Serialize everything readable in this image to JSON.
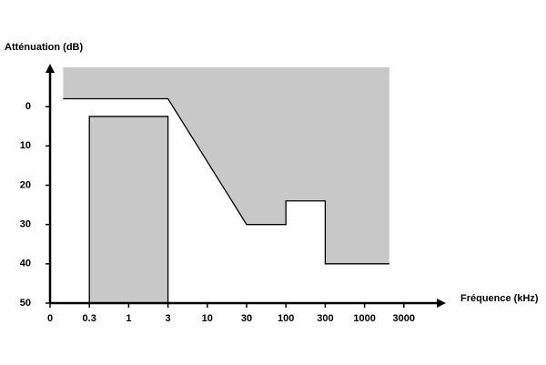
{
  "chart_data": {
    "type": "area",
    "xlabel": "Fréquence (kHz)",
    "ylabel": "Atténuation (dB)",
    "xticks": [
      0,
      0.3,
      1,
      3,
      10,
      30,
      100,
      300,
      1000,
      3000
    ],
    "ylim": [
      50,
      -10
    ],
    "yticks": [
      0,
      10,
      20,
      30,
      40,
      50
    ],
    "series": [
      {
        "color": "#c8c8c8",
        "fill": "above",
        "x": [
          0.1,
          3,
          30,
          100,
          100,
          300,
          300,
          2000
        ],
        "values": [
          -2,
          -2,
          30,
          30,
          24,
          24,
          40,
          40
        ]
      },
      {
        "color": "#c8c8c8",
        "fill": "below",
        "x": [
          0.3,
          0.3,
          3,
          3
        ],
        "values": [
          50,
          2.5,
          2.5,
          50
        ]
      }
    ]
  }
}
